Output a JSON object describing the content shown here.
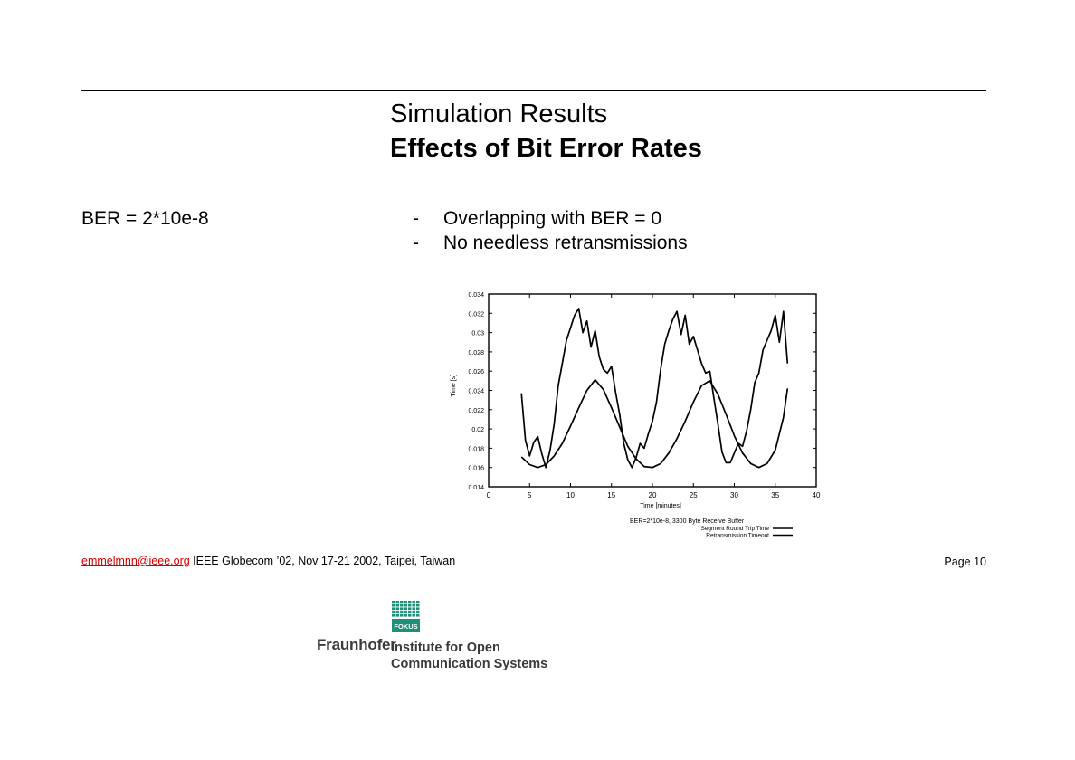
{
  "slide": {
    "title": "Simulation Results",
    "subtitle": "Effects of Bit Error Rates"
  },
  "left_label": "BER = 2*10e-8",
  "bullets": [
    {
      "dash": "-",
      "text": "Overlapping with BER = 0"
    },
    {
      "dash": "-",
      "text": "No needless retransmissions"
    }
  ],
  "footer": {
    "email": "emmelmnn@ieee.org",
    "conference": " IEEE Globecom ’02, Nov 17-21 2002, Taipei, Taiwan",
    "page": "Page 10"
  },
  "logo": {
    "badge": "FOKUS",
    "brand": "Fraunhofer",
    "line1": "Institute for Open",
    "line2": "Communication Systems",
    "colors": {
      "green": "#1f8f77",
      "text": "#3a3a3a"
    }
  },
  "chart_data": {
    "type": "line",
    "title": "",
    "xlabel": "Time [minutes]",
    "ylabel": "Time [s]",
    "xlim": [
      0,
      40
    ],
    "ylim": [
      0.014,
      0.034
    ],
    "xticks": [
      "0",
      "5",
      "10",
      "15",
      "20",
      "25",
      "30",
      "35",
      "40"
    ],
    "yticks": [
      "0.014",
      "0.016",
      "0.018",
      "0.02",
      "0.022",
      "0.024",
      "0.026",
      "0.028",
      "0.03",
      "0.032",
      "0.034"
    ],
    "legend_title": "BER=2*10e-8, 3300 Byte Receive Buffer",
    "legend_position": "below-right",
    "grid": false,
    "series": [
      {
        "name": "Segment Round Trip Time",
        "x": [
          4,
          4.5,
          5,
          5.5,
          6,
          6.5,
          7,
          7.5,
          8,
          8.5,
          9,
          9.5,
          10,
          10.5,
          11,
          11.5,
          12,
          12.5,
          13,
          13.5,
          14,
          14.5,
          15,
          15.5,
          16,
          16.5,
          17,
          17.5,
          18,
          18.5,
          19,
          19.5,
          20,
          20.5,
          21,
          21.5,
          22,
          22.5,
          23,
          23.5,
          24,
          24.5,
          25,
          25.5,
          26,
          26.5,
          27,
          27.5,
          28,
          28.5,
          29,
          29.5,
          30,
          30.5,
          31,
          31.5,
          32,
          32.5,
          33,
          33.5,
          34,
          34.5,
          35,
          35.5,
          36,
          36.5
        ],
        "values": [
          0.0237,
          0.0188,
          0.0172,
          0.0186,
          0.0192,
          0.0174,
          0.016,
          0.0178,
          0.0205,
          0.0245,
          0.0268,
          0.0292,
          0.0305,
          0.0318,
          0.0325,
          0.03,
          0.0312,
          0.0285,
          0.0302,
          0.0275,
          0.0262,
          0.0258,
          0.0265,
          0.0238,
          0.0215,
          0.0185,
          0.0168,
          0.016,
          0.017,
          0.0185,
          0.018,
          0.0195,
          0.0208,
          0.0228,
          0.0262,
          0.0288,
          0.0302,
          0.0314,
          0.0322,
          0.0298,
          0.0318,
          0.0288,
          0.0296,
          0.0282,
          0.0268,
          0.0258,
          0.026,
          0.0232,
          0.0205,
          0.0176,
          0.0165,
          0.0165,
          0.0175,
          0.0185,
          0.0182,
          0.0198,
          0.022,
          0.0248,
          0.0258,
          0.0282,
          0.0292,
          0.0302,
          0.0318,
          0.029,
          0.0322,
          0.0268
        ]
      },
      {
        "name": "Retransmission Timeout",
        "x": [
          4,
          5,
          6,
          7,
          8,
          9,
          10,
          11,
          12,
          13,
          14,
          15,
          16,
          17,
          18,
          19,
          20,
          21,
          22,
          23,
          24,
          25,
          26,
          27,
          28,
          29,
          30,
          31,
          32,
          33,
          34,
          35,
          36,
          36.5
        ],
        "values": [
          0.0171,
          0.0163,
          0.016,
          0.0163,
          0.0172,
          0.0185,
          0.0203,
          0.0222,
          0.024,
          0.0251,
          0.0241,
          0.0222,
          0.0202,
          0.0182,
          0.0169,
          0.0161,
          0.016,
          0.0164,
          0.0175,
          0.019,
          0.0208,
          0.0228,
          0.0245,
          0.025,
          0.0236,
          0.0215,
          0.0193,
          0.0175,
          0.0164,
          0.016,
          0.0164,
          0.0178,
          0.0212,
          0.0242
        ]
      }
    ]
  }
}
